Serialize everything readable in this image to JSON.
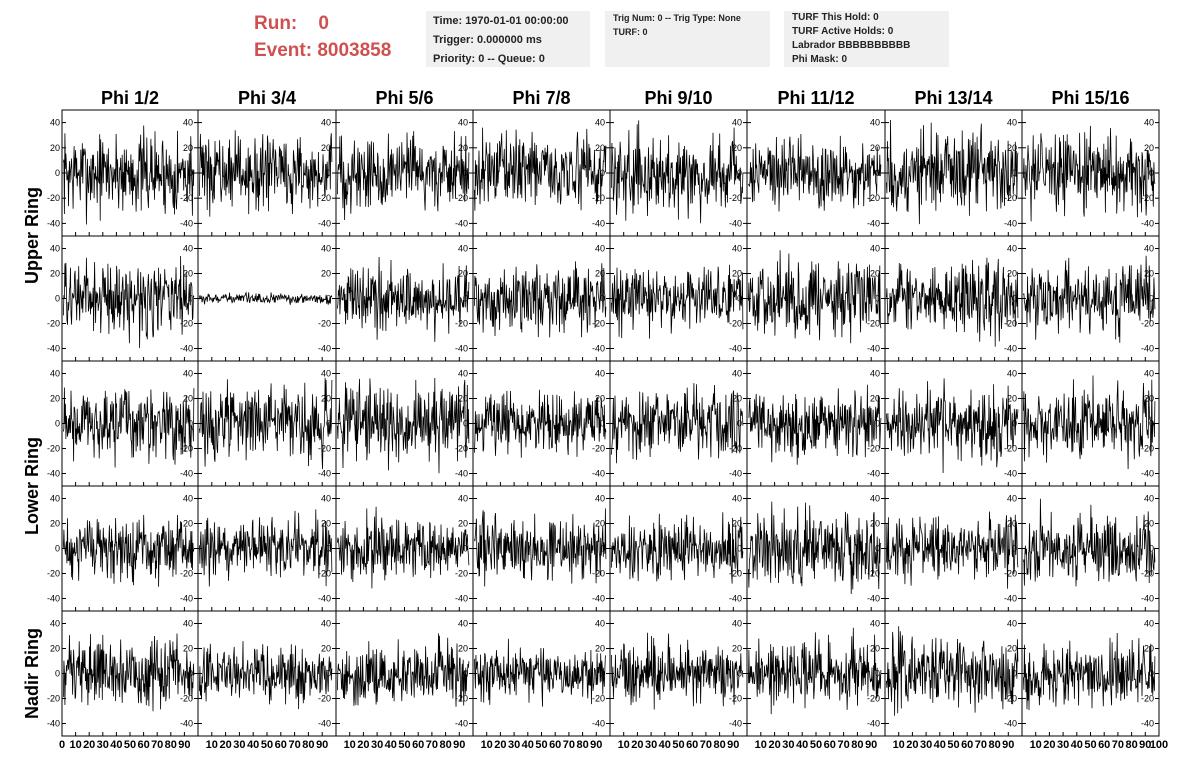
{
  "header": {
    "run_label": "Run:    0",
    "event_label": "Event: 8003858"
  },
  "info_boxes": {
    "time": [
      "Time: 1970-01-01 00:00:00",
      "Trigger: 0.000000 ms",
      "Priority: 0 -- Queue: 0"
    ],
    "trig": [
      "Trig Num: 0 -- Trig Type: None",
      "",
      "TURF: 0"
    ],
    "turf": [
      "TURF This Hold: 0",
      "TURF Active Holds: 0",
      "Labrador BBBBBBBBBB",
      "Phi Mask: 0"
    ]
  },
  "chart_data": {
    "type": "line",
    "layout": "grid",
    "columns": [
      "Phi 1/2",
      "Phi 3/4",
      "Phi 5/6",
      "Phi 7/8",
      "Phi 9/10",
      "Phi 11/12",
      "Phi 13/14",
      "Phi 15/16"
    ],
    "rows": [
      "Upper Ring",
      "Upper Ring",
      "Lower Ring",
      "Lower Ring",
      "Nadir Ring"
    ],
    "row_labels": [
      "Upper Ring",
      "Lower Ring",
      "Nadir Ring"
    ],
    "xlim": [
      0,
      100
    ],
    "ylim": [
      -50,
      50
    ],
    "y_ticks": [
      -40,
      -20,
      0,
      20,
      40
    ],
    "x_tick_labels": [
      "0",
      "10",
      "20",
      "30",
      "40",
      "50",
      "60",
      "70",
      "80",
      "90",
      "100"
    ],
    "samples": 256,
    "panel_amplitudes": [
      [
        16,
        14,
        15,
        14,
        15,
        14,
        17,
        15
      ],
      [
        14,
        2,
        13,
        13,
        12,
        15,
        14,
        13
      ],
      [
        14,
        14,
        15,
        12,
        14,
        13,
        14,
        14
      ],
      [
        12,
        12,
        12,
        13,
        12,
        15,
        12,
        14
      ],
      [
        13,
        11,
        12,
        11,
        12,
        13,
        14,
        12
      ]
    ],
    "grid": false
  }
}
